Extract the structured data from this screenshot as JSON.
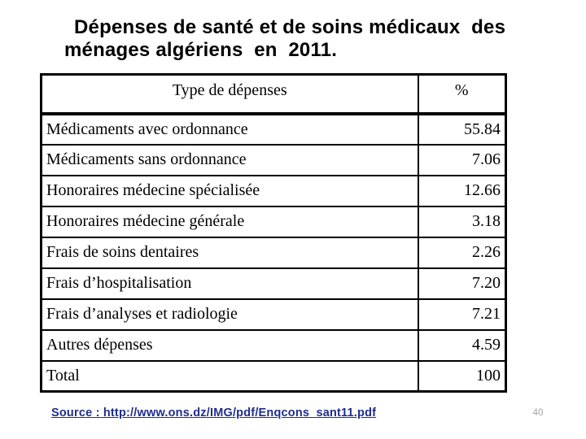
{
  "slide": {
    "title": {
      "line1": "Dépenses de santé et de soins médicaux  des",
      "line2": "ménages algériens  en  2011.",
      "color": "#000000"
    }
  },
  "table": {
    "headers": {
      "type": "Type de dépenses",
      "percent": "%"
    },
    "rows": [
      {
        "label": "Médicaments avec ordonnance",
        "value": "55.84"
      },
      {
        "label": "Médicaments sans ordonnance",
        "value": "7.06"
      },
      {
        "label": "Honoraires médecine spécialisée",
        "value": "12.66"
      },
      {
        "label": "Honoraires médecine générale",
        "value": "3.18"
      },
      {
        "label": "Frais de soins dentaires",
        "value": "2.26"
      },
      {
        "label": "Frais d’hospitalisation",
        "value": "7.20"
      },
      {
        "label": "Frais d’analyses et radiologie",
        "value": "7.21"
      },
      {
        "label": "Autres dépenses",
        "value": "4.59"
      },
      {
        "label": "Total",
        "value": "100"
      }
    ],
    "border_color": "#000000"
  },
  "footer": {
    "source_text": "Source : http://www.ons.dz/IMG/pdf/Enqcons_sant11.pdf",
    "source_color": "#1F2D8E",
    "page_number": "40",
    "page_number_color": "#A3A3A3"
  }
}
